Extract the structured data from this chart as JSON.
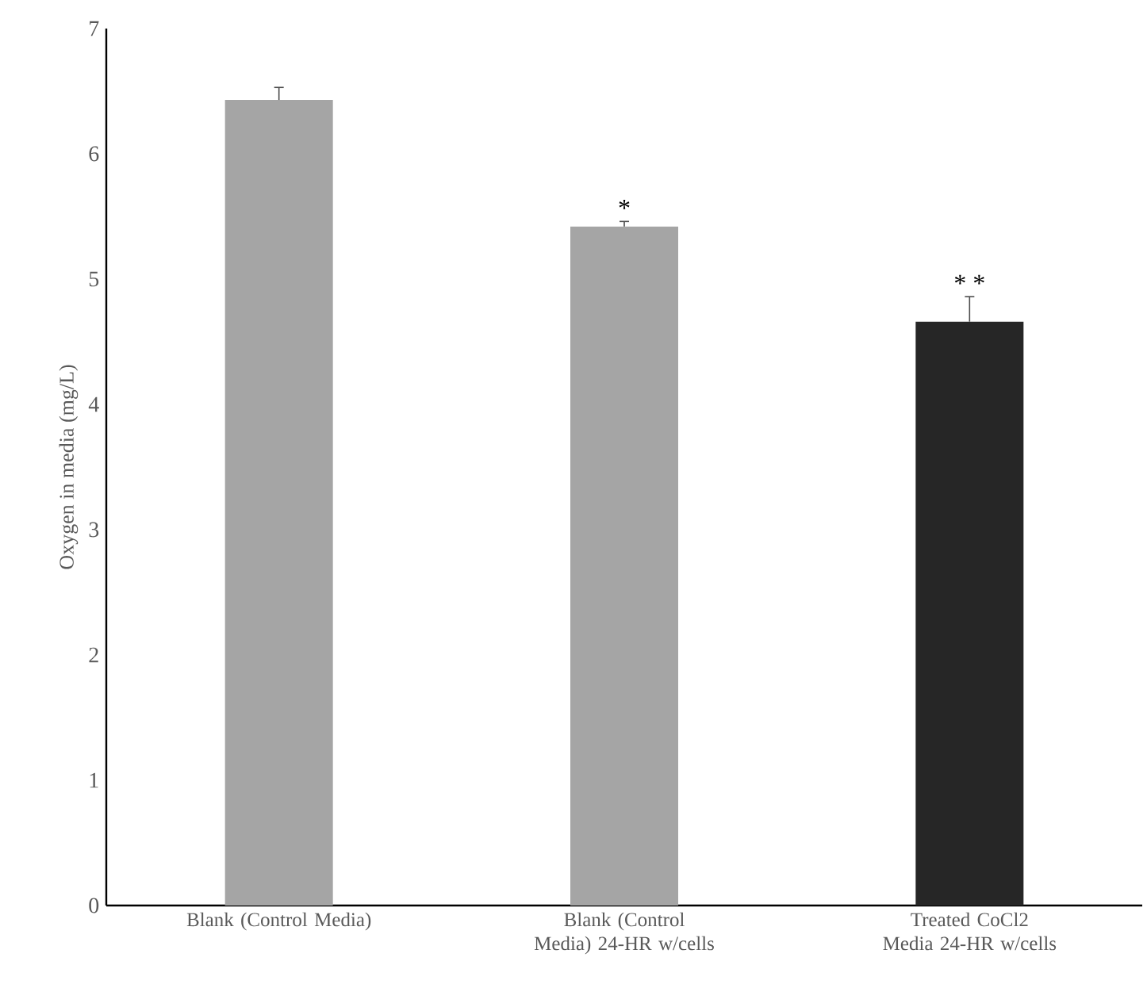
{
  "chart_data": {
    "type": "bar",
    "ylabel": "Oxygen in media (mg/L)",
    "categories": [
      "Blank (Control Media)",
      "Blank (Control Media) 24-HR w/cells",
      "Treated CoCl2 Media 24-HR w/cells"
    ],
    "values": [
      6.43,
      5.42,
      4.66
    ],
    "colors": [
      "#a5a5a5",
      "#a5a5a5",
      "#262626"
    ],
    "errors": [
      0.1,
      0.04,
      0.2
    ],
    "ylim": [
      0,
      7
    ],
    "yticks": [
      0,
      1,
      2,
      3,
      4,
      5,
      6,
      7
    ],
    "grid": false,
    "annotations": [
      {
        "text": "*",
        "x": "Blank (Control Media) 24-HR w/cells",
        "y": 5.42
      },
      {
        "text": "* *",
        "x": "Treated CoCl2 Media 24-HR w/cells",
        "y": 4.66
      }
    ]
  }
}
